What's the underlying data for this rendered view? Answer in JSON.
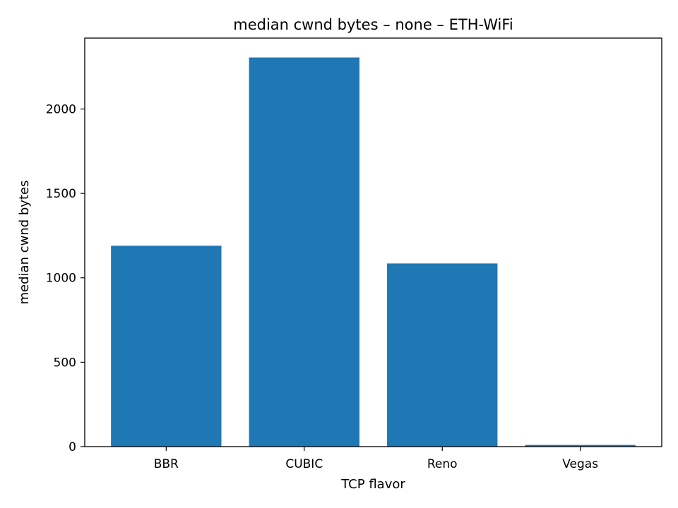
{
  "chart_data": {
    "type": "bar",
    "title": "median cwnd bytes – none – ETH-WiFi",
    "xlabel": "TCP flavor",
    "ylabel": "median cwnd bytes",
    "categories": [
      "BBR",
      "CUBIC",
      "Reno",
      "Vegas"
    ],
    "values": [
      1190,
      2305,
      1085,
      10
    ],
    "ylim": [
      0,
      2420
    ],
    "yticks": [
      0,
      500,
      1000,
      1500,
      2000
    ],
    "ytick_labels": [
      "0",
      "500",
      "1000",
      "1500",
      "2000"
    ],
    "grid": false,
    "legend": "none",
    "bar_color": "#1f77b4"
  }
}
